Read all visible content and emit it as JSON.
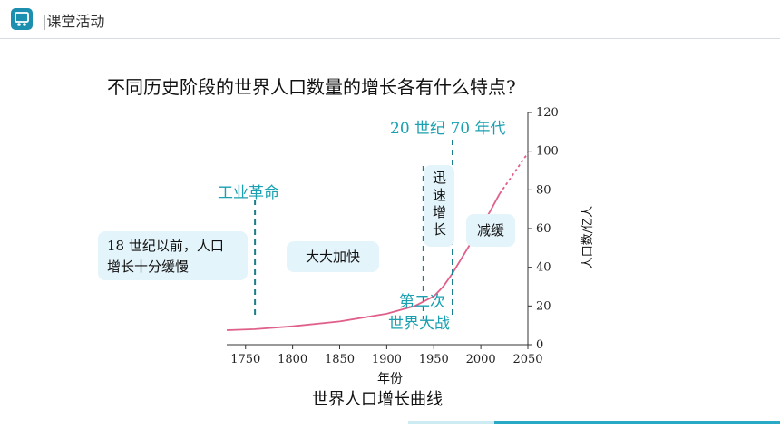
{
  "header": {
    "title": "|课堂活动"
  },
  "question": "不同历史阶段的世界人口数量的增长各有什么特点?",
  "annotations": {
    "industrial": "工业革命",
    "seventies": "20 世纪 70 年代",
    "ww2_line1": "第二次",
    "ww2_line2": "世界大战",
    "before18_line1": "18 世纪以前，人口",
    "before18_line2": "增长十分缓慢",
    "accelerate": "大大加快",
    "rapid": "迅速增长",
    "slowdown": "减缓"
  },
  "colors": {
    "accent": "#1aa0b0",
    "curve": "#e0608a",
    "box": "#e4f4fb"
  },
  "chart_data": {
    "type": "line",
    "title": "世界人口增长曲线",
    "xlabel": "年份",
    "ylabel": "人口数/亿人",
    "x_ticks": [
      1750,
      1800,
      1850,
      1900,
      1950,
      2000,
      2050
    ],
    "y_ticks": [
      0,
      20,
      40,
      60,
      80,
      100,
      120
    ],
    "xlim": [
      1730,
      2050
    ],
    "ylim": [
      0,
      120
    ],
    "series": [
      {
        "x": [
          1730,
          1760,
          1800,
          1850,
          1900,
          1930,
          1950,
          1960,
          1970,
          1980,
          1990,
          2000,
          2010,
          2020
        ],
        "values": [
          7.5,
          8,
          9.5,
          12,
          16,
          20,
          25,
          30,
          37,
          45,
          53,
          61,
          69,
          78
        ],
        "style": "solid"
      },
      {
        "x": [
          2020,
          2030,
          2040,
          2050
        ],
        "values": [
          78,
          85,
          92,
          99
        ],
        "style": "dashed"
      }
    ],
    "markers": [
      {
        "x": 1760,
        "style": "dashed-vertical"
      },
      {
        "x": 1939,
        "style": "dashed-vertical"
      },
      {
        "x": 1970,
        "style": "dashed-vertical"
      }
    ]
  }
}
